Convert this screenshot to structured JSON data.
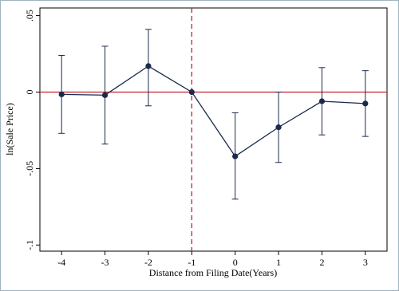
{
  "chart_data": {
    "type": "line",
    "x_label": "Distance from Filing Date(Years)",
    "y_label": "ln(Sale Price)",
    "x": [
      -4,
      -3,
      -2,
      -1,
      0,
      1,
      2,
      3
    ],
    "series": [
      {
        "color": "#1a2a4a",
        "values": [
          -0.0015,
          -0.002,
          0.017,
          0,
          -0.042,
          -0.023,
          -0.006,
          -0.0075
        ],
        "ci_upper": [
          0.024,
          0.03,
          0.041,
          null,
          -0.0135,
          0.0,
          0.016,
          0.014
        ],
        "ci_lower": [
          -0.027,
          -0.034,
          -0.009,
          null,
          -0.07,
          -0.046,
          -0.028,
          -0.029
        ]
      }
    ],
    "xlim": [
      -4.5,
      3.5
    ],
    "ylim": [
      -0.104,
      0.055
    ],
    "xticks": [
      -4,
      -3,
      -2,
      -1,
      0,
      1,
      2,
      3
    ],
    "yticks": [
      {
        "value": -0.1,
        "label": "-.1"
      },
      {
        "value": -0.05,
        "label": "-.05"
      },
      0,
      {
        "value": 0.05,
        "label": ".05"
      }
    ],
    "hline": {
      "value": 0,
      "color": "#c8202f"
    },
    "vline": {
      "value": -1,
      "color": "#c8202f",
      "dashed": true
    }
  }
}
